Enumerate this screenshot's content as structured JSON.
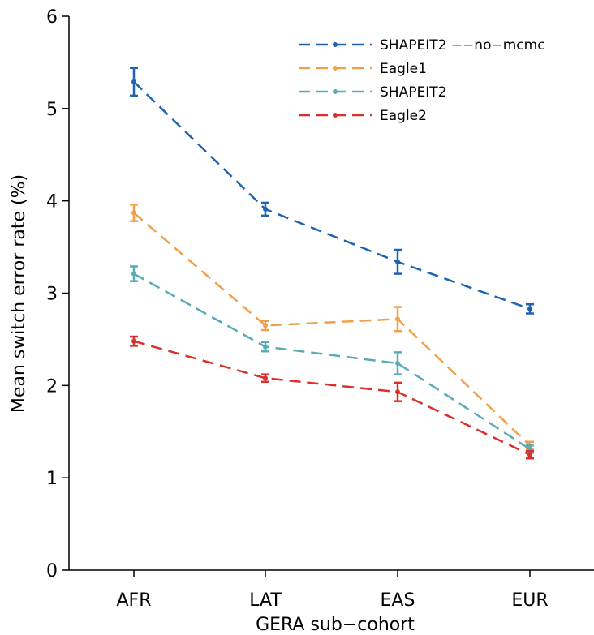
{
  "chart_data": {
    "type": "line",
    "title": "",
    "xlabel": "GERA sub−cohort",
    "ylabel": "Mean switch error rate (%)",
    "categories": [
      "AFR",
      "LAT",
      "EAS",
      "EUR"
    ],
    "ylim": [
      0,
      6
    ],
    "yticks": [
      "0",
      "1",
      "2",
      "3",
      "4",
      "5",
      "6"
    ],
    "grid": false,
    "legend_position": "top-right",
    "series": [
      {
        "name": "SHAPEIT2 −−no−mcmc",
        "color": "#1f63b0",
        "values": [
          5.29,
          3.91,
          3.34,
          2.83
        ],
        "errors": [
          0.15,
          0.07,
          0.13,
          0.05
        ]
      },
      {
        "name": "Eagle1",
        "color": "#f0a04a",
        "values": [
          3.87,
          2.65,
          2.72,
          1.35
        ],
        "errors": [
          0.09,
          0.05,
          0.13,
          0.04
        ]
      },
      {
        "name": "SHAPEIT2",
        "color": "#5aabb5",
        "values": [
          3.21,
          2.42,
          2.24,
          1.31
        ],
        "errors": [
          0.08,
          0.05,
          0.12,
          0.04
        ]
      },
      {
        "name": "Eagle2",
        "color": "#d8312c",
        "values": [
          2.48,
          2.08,
          1.93,
          1.25
        ],
        "errors": [
          0.05,
          0.04,
          0.1,
          0.04
        ]
      }
    ]
  }
}
